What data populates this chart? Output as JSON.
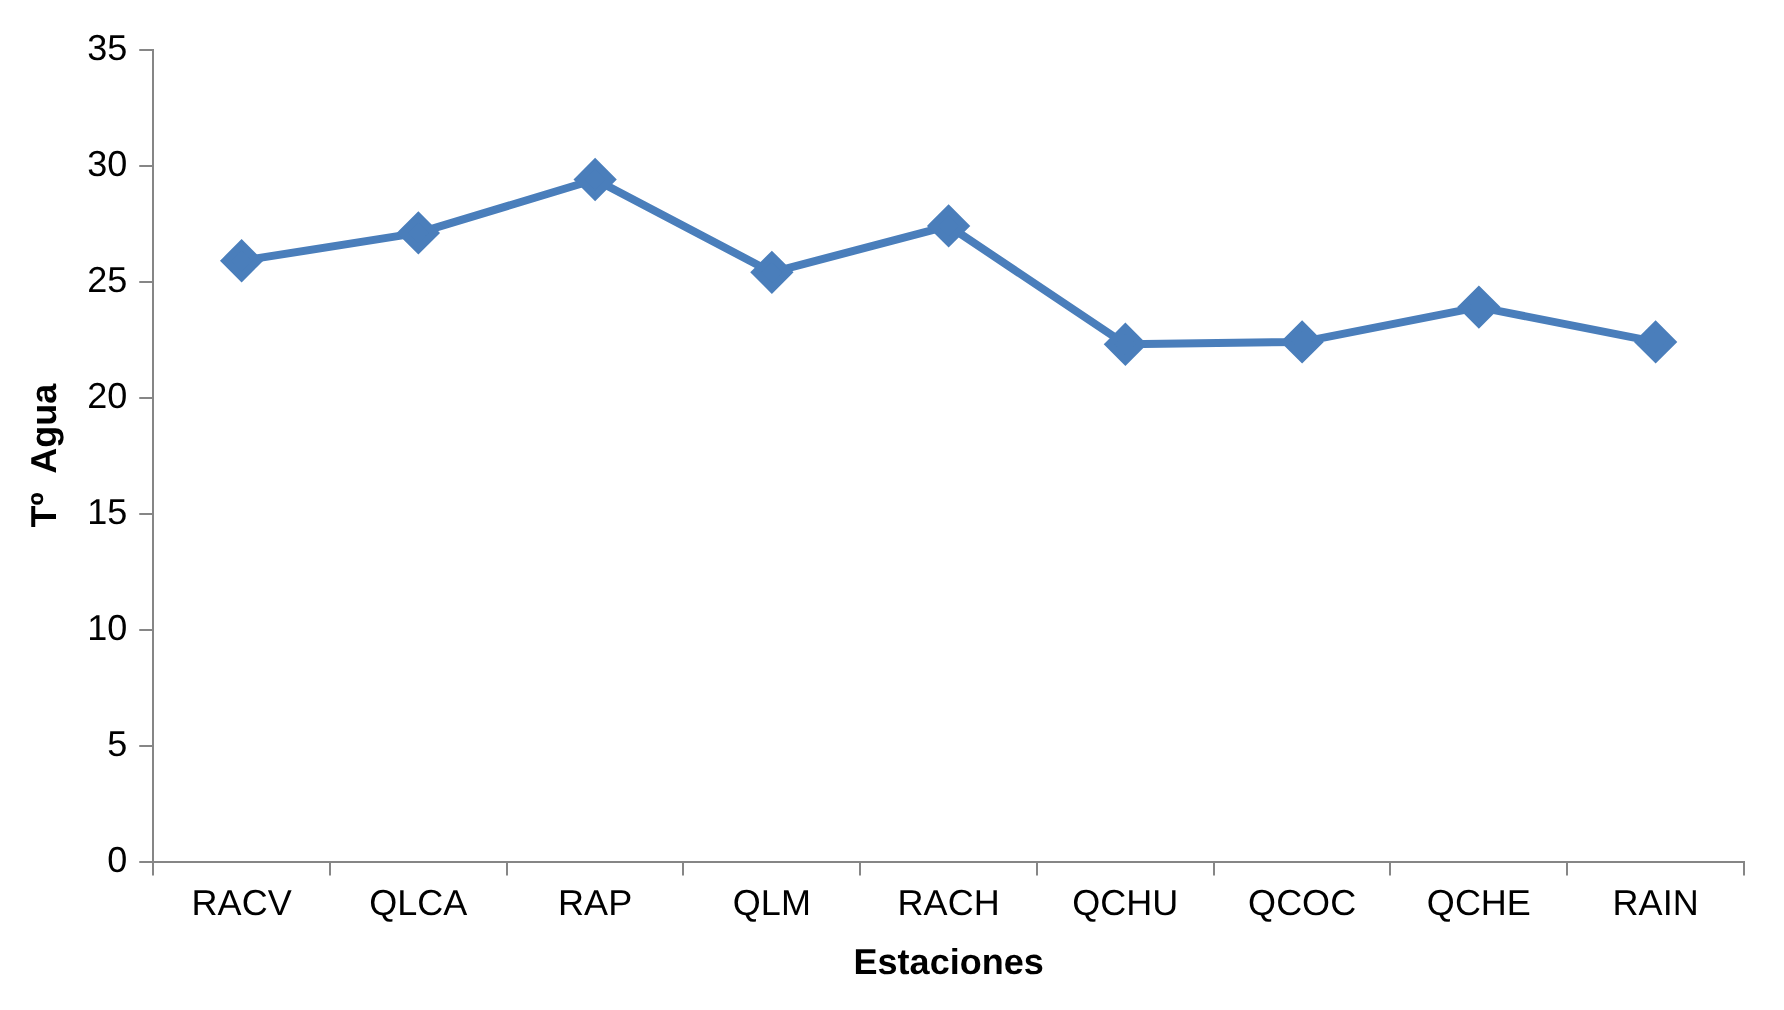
{
  "chart_data": {
    "type": "line",
    "xlabel": "Estaciones",
    "ylabel": "Tº  Agua",
    "categories": [
      "RACV",
      "QLCA",
      "RAP",
      "QLM",
      "RACH",
      "QCHU",
      "QCOC",
      "QCHE",
      "RAIN"
    ],
    "series": [
      {
        "color": "#4a7ebb",
        "values": [
          25.9,
          27.1,
          29.4,
          25.4,
          27.4,
          22.3,
          22.4,
          23.9,
          22.4
        ]
      }
    ],
    "ylim": [
      0,
      35
    ],
    "yticks": [
      0,
      5,
      10,
      15,
      20,
      25,
      30,
      35
    ],
    "grid": false,
    "legend": false,
    "marker": "diamond",
    "line_style": "solid"
  }
}
